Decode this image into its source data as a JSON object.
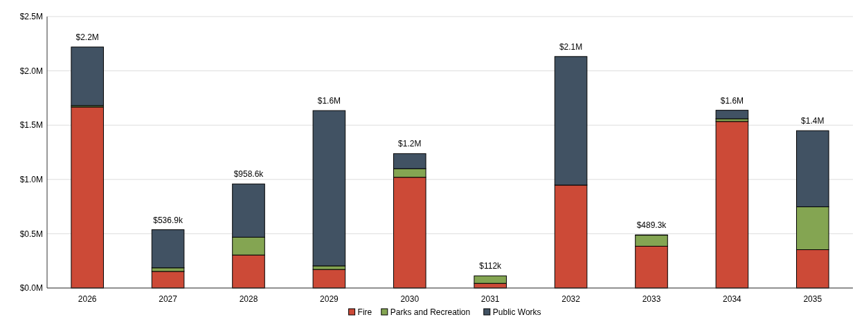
{
  "chart_data": {
    "type": "bar",
    "stacked": true,
    "categories": [
      "2026",
      "2027",
      "2028",
      "2029",
      "2030",
      "2031",
      "2032",
      "2033",
      "2034",
      "2035"
    ],
    "series": [
      {
        "name": "Fire",
        "color": "#cc4a37",
        "values": [
          1.667,
          0.153,
          0.304,
          0.171,
          1.02,
          0.043,
          0.948,
          0.385,
          1.534,
          0.353
        ]
      },
      {
        "name": "Parks and Recreation",
        "color": "#84a552",
        "values": [
          0.013,
          0.033,
          0.164,
          0.033,
          0.079,
          0.069,
          null,
          0.1013,
          0.025,
          0.395
        ]
      },
      {
        "name": "Public Works",
        "color": "#415263",
        "values": [
          0.54,
          0.351,
          0.4906,
          1.43,
          0.139,
          0,
          1.184,
          0.003,
          0.078,
          0.701
        ]
      }
    ],
    "totals": [
      "$2.2M",
      "$536.9k",
      "$958.6k",
      "$1.6M",
      "$1.2M",
      "$112k",
      "$2.1M",
      "$489.3k",
      "$1.6M",
      "$1.4M"
    ],
    "ylim": [
      0,
      2.5
    ],
    "yticks": [
      {
        "value": 0,
        "label": "$0.0M"
      },
      {
        "value": 0.5,
        "label": "$0.5M"
      },
      {
        "value": 1,
        "label": "$1.0M"
      },
      {
        "value": 1.5,
        "label": "$1.5M"
      },
      {
        "value": 2,
        "label": "$2.0M"
      },
      {
        "value": 2.5,
        "label": "$2.5M"
      }
    ],
    "grid": "y",
    "legend": "bottom"
  }
}
